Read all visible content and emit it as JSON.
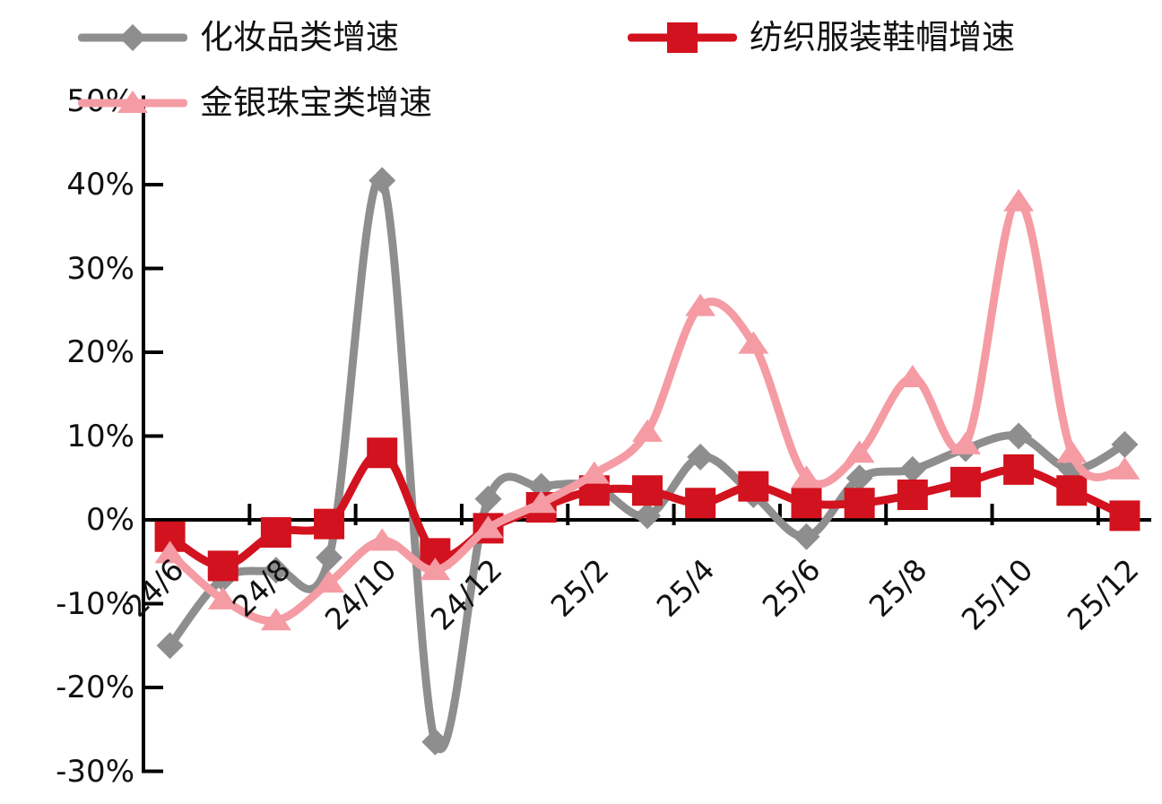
{
  "chart_data": {
    "type": "line",
    "title": "",
    "xlabel": "",
    "ylabel": "",
    "unit": "percent YoY growth",
    "grid": false,
    "smoothed_lines": true,
    "categories": [
      "24/6",
      "24/7",
      "24/8",
      "24/9",
      "24/10",
      "24/11",
      "24/12",
      "25/1",
      "25/2",
      "25/3",
      "25/4",
      "25/5",
      "25/6",
      "25/7",
      "25/8",
      "25/9",
      "25/10",
      "25/11",
      "25/12"
    ],
    "series": [
      {
        "name": "化妆品类增速",
        "color": "#8e8e8e",
        "marker": "diamond",
        "legend_row": 1,
        "values": [
          -15,
          -7,
          -6,
          -4.5,
          40.5,
          -26.5,
          2.5,
          4,
          4,
          0.5,
          7.5,
          3,
          -2,
          5,
          6,
          8.5,
          10,
          6,
          9
        ]
      },
      {
        "name": "纺织服装鞋帽增速",
        "color": "#d2121e",
        "marker": "square",
        "legend_row": 1,
        "values": [
          -2,
          -5.5,
          -1.5,
          -0.5,
          8,
          -4,
          -1,
          1.5,
          3.5,
          3.5,
          2,
          4,
          2,
          2,
          3,
          4.5,
          6,
          3.5,
          0.5
        ]
      },
      {
        "name": "金银珠宝类增速",
        "color": "#f59ba4",
        "marker": "triangle",
        "legend_row": 2,
        "values": [
          -4,
          -9.5,
          -12,
          -7.5,
          -2.5,
          -6,
          -1,
          2,
          5.5,
          10.5,
          25.5,
          21,
          5,
          8,
          17,
          9,
          38,
          8,
          6
        ]
      }
    ],
    "y_axis": {
      "min": -30,
      "max": 50,
      "step": 10,
      "tick_labels": [
        "50%",
        "40%",
        "30%",
        "20%",
        "10%",
        "0%",
        "-10%",
        "-20%",
        "-30%"
      ]
    },
    "x_axis": {
      "tick_labels": [
        "24/6",
        "24/8",
        "24/10",
        "24/12",
        "25/2",
        "25/4",
        "25/6",
        "25/8",
        "25/10",
        "25/12"
      ],
      "label_every_n_points": 2,
      "labels_rotated_degrees": -45
    },
    "legend_position": "top-left, two rows"
  },
  "colors": {
    "background": "#ffffff",
    "axis": "#000000",
    "text": "#111111",
    "series_gray": "#8e8e8e",
    "series_red": "#d2121e",
    "series_pink": "#f59ba4"
  }
}
